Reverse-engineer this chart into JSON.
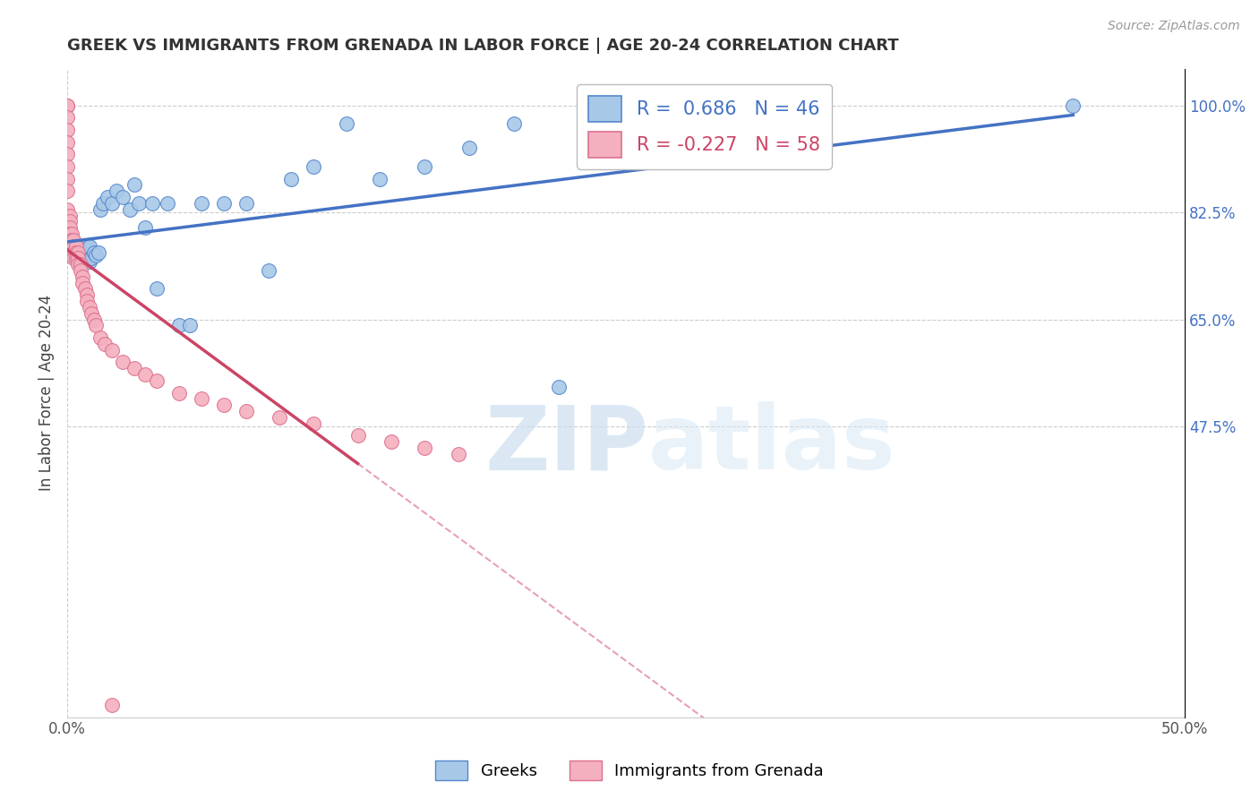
{
  "title": "GREEK VS IMMIGRANTS FROM GRENADA IN LABOR FORCE | AGE 20-24 CORRELATION CHART",
  "source": "Source: ZipAtlas.com",
  "ylabel": "In Labor Force | Age 20-24",
  "x_min": 0.0,
  "x_max": 0.5,
  "y_min": 0.0,
  "y_max": 1.06,
  "y_ticks_right": [
    0.475,
    0.65,
    0.825,
    1.0
  ],
  "y_tick_labels_right": [
    "47.5%",
    "65.0%",
    "82.5%",
    "100.0%"
  ],
  "r_blue": 0.686,
  "n_blue": 46,
  "r_pink": -0.227,
  "n_pink": 58,
  "blue_color": "#a8c8e8",
  "blue_edge_color": "#5588cc",
  "blue_line_color": "#4472c4",
  "pink_color": "#f4b0be",
  "pink_edge_color": "#dd7090",
  "pink_line_color": "#cc4466",
  "watermark_zip": "ZIP",
  "watermark_atlas": "atlas",
  "legend_label_blue": "Greeks",
  "legend_label_pink": "Immigrants from Grenada",
  "gridline_y": [
    0.475,
    0.65,
    0.825,
    1.0
  ],
  "background_color": "#ffffff",
  "blue_scatter_x": [
    0.001,
    0.001,
    0.003,
    0.004,
    0.005,
    0.005,
    0.006,
    0.006,
    0.007,
    0.008,
    0.009,
    0.009,
    0.01,
    0.01,
    0.011,
    0.012,
    0.013,
    0.014,
    0.015,
    0.016,
    0.018,
    0.02,
    0.022,
    0.025,
    0.028,
    0.03,
    0.032,
    0.035,
    0.038,
    0.04,
    0.045,
    0.05,
    0.055,
    0.06,
    0.07,
    0.08,
    0.09,
    0.1,
    0.11,
    0.125,
    0.14,
    0.16,
    0.18,
    0.2,
    0.22,
    0.45
  ],
  "blue_scatter_y": [
    0.755,
    0.77,
    0.755,
    0.76,
    0.745,
    0.77,
    0.75,
    0.765,
    0.745,
    0.76,
    0.75,
    0.77,
    0.745,
    0.77,
    0.75,
    0.76,
    0.755,
    0.76,
    0.83,
    0.84,
    0.85,
    0.84,
    0.86,
    0.85,
    0.83,
    0.87,
    0.84,
    0.8,
    0.84,
    0.7,
    0.84,
    0.64,
    0.64,
    0.84,
    0.84,
    0.84,
    0.73,
    0.88,
    0.9,
    0.97,
    0.88,
    0.9,
    0.93,
    0.97,
    0.54,
    1.0
  ],
  "pink_scatter_x": [
    0.0,
    0.0,
    0.0,
    0.0,
    0.0,
    0.0,
    0.0,
    0.0,
    0.0,
    0.0,
    0.001,
    0.001,
    0.001,
    0.001,
    0.001,
    0.002,
    0.002,
    0.002,
    0.002,
    0.003,
    0.003,
    0.003,
    0.003,
    0.004,
    0.004,
    0.004,
    0.005,
    0.005,
    0.005,
    0.006,
    0.006,
    0.007,
    0.007,
    0.008,
    0.009,
    0.009,
    0.01,
    0.011,
    0.012,
    0.013,
    0.015,
    0.017,
    0.02,
    0.025,
    0.03,
    0.035,
    0.04,
    0.05,
    0.06,
    0.07,
    0.08,
    0.095,
    0.11,
    0.13,
    0.145,
    0.16,
    0.175,
    0.02
  ],
  "pink_scatter_y": [
    1.0,
    1.0,
    0.98,
    0.96,
    0.94,
    0.92,
    0.9,
    0.88,
    0.86,
    0.83,
    0.82,
    0.81,
    0.8,
    0.79,
    0.78,
    0.79,
    0.78,
    0.77,
    0.76,
    0.78,
    0.77,
    0.76,
    0.75,
    0.77,
    0.76,
    0.75,
    0.76,
    0.75,
    0.74,
    0.74,
    0.73,
    0.72,
    0.71,
    0.7,
    0.69,
    0.68,
    0.67,
    0.66,
    0.65,
    0.64,
    0.62,
    0.61,
    0.6,
    0.58,
    0.57,
    0.56,
    0.55,
    0.53,
    0.52,
    0.51,
    0.5,
    0.49,
    0.48,
    0.46,
    0.45,
    0.44,
    0.43,
    0.02
  ]
}
